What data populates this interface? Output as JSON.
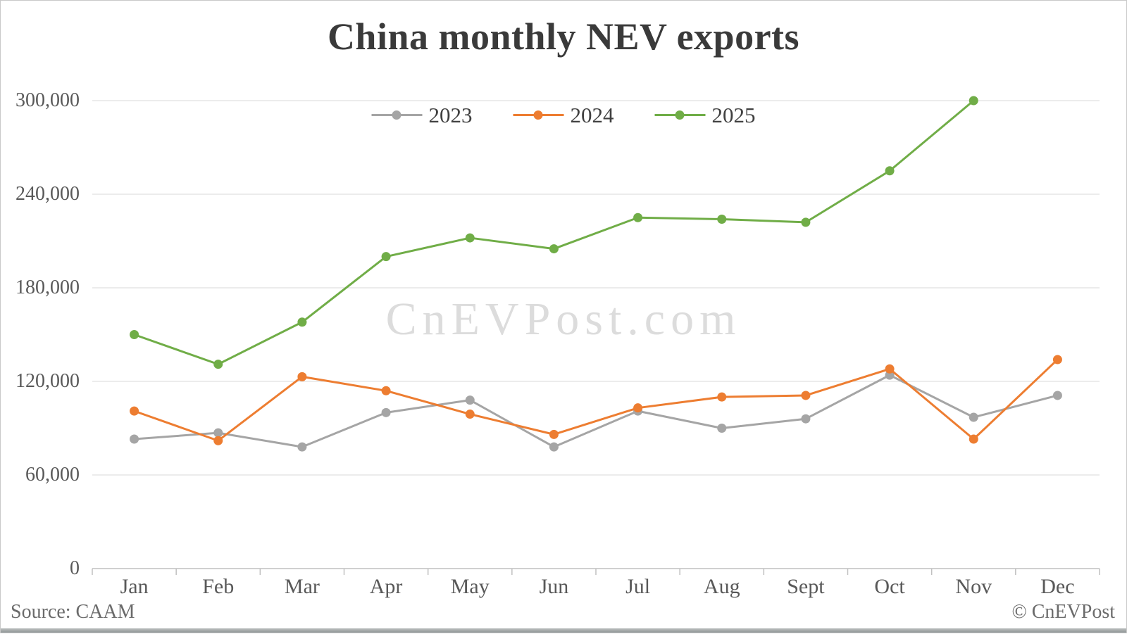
{
  "title": "China monthly NEV exports",
  "watermark": "CnEVPost.com",
  "footer": {
    "source": "Source: CAAM",
    "copyright": "© CnEVPost"
  },
  "colors": {
    "title": "#3a3a3a",
    "axis_label": "#595959",
    "gridline": "#d9d9d9",
    "axis_line": "#c0c0c0",
    "watermark": "#dcdcdc",
    "footer_text": "#6b6b6b"
  },
  "chart_data": {
    "type": "line",
    "title": "China monthly NEV exports",
    "categories": [
      "Jan",
      "Feb",
      "Mar",
      "Apr",
      "May",
      "Jun",
      "Jul",
      "Aug",
      "Sept",
      "Oct",
      "Nov",
      "Dec"
    ],
    "series": [
      {
        "name": "2023",
        "color": "#a5a5a5",
        "values": [
          83000,
          87000,
          78000,
          100000,
          108000,
          78000,
          101000,
          90000,
          96000,
          124000,
          97000,
          111000
        ]
      },
      {
        "name": "2024",
        "color": "#ed7d31",
        "values": [
          101000,
          82000,
          123000,
          114000,
          99000,
          86000,
          103000,
          110000,
          111000,
          128000,
          83000,
          134000
        ]
      },
      {
        "name": "2025",
        "color": "#70ad47",
        "values": [
          150000,
          131000,
          158000,
          200000,
          212000,
          205000,
          225000,
          224000,
          222000,
          255000,
          300000,
          null
        ]
      }
    ],
    "ylim": [
      0,
      300000
    ],
    "ytick_step": 60000,
    "ytick_labels_top_to_bottom": [
      "300,000",
      "240,000",
      "180,000",
      "120,000",
      "60,000",
      "0"
    ],
    "grid": true,
    "legend_position": "top-center",
    "xlabel": "",
    "ylabel": ""
  }
}
